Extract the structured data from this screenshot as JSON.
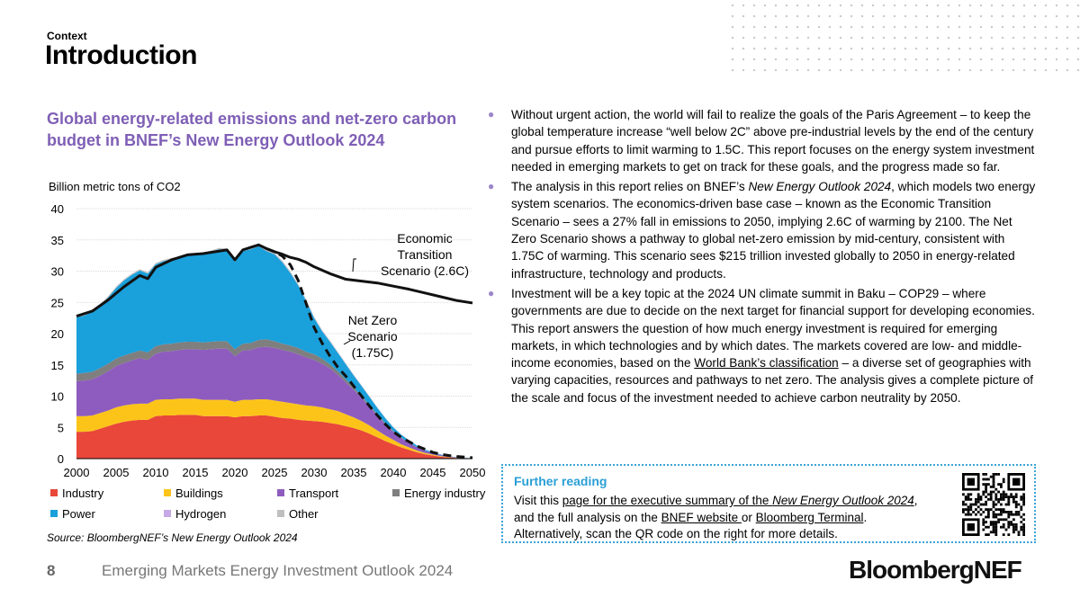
{
  "header": {
    "context": "Context",
    "title": "Introduction"
  },
  "chart_title": "Global energy-related emissions and net-zero carbon budget in BNEF’s New Energy Outlook 2024",
  "chart_data": {
    "type": "area",
    "ylabel": "Billion metric tons of CO2",
    "ylim": [
      0,
      40
    ],
    "yticks": [
      0,
      5,
      10,
      15,
      20,
      25,
      30,
      35,
      40
    ],
    "xlim": [
      2000,
      2050
    ],
    "xticks": [
      2000,
      2005,
      2010,
      2015,
      2020,
      2025,
      2030,
      2035,
      2040,
      2045,
      2050
    ],
    "x": [
      2000,
      2001,
      2002,
      2003,
      2004,
      2005,
      2006,
      2007,
      2008,
      2009,
      2010,
      2011,
      2012,
      2013,
      2014,
      2015,
      2016,
      2017,
      2018,
      2019,
      2020,
      2021,
      2022,
      2023,
      2024,
      2025,
      2026,
      2027,
      2028,
      2029,
      2030,
      2031,
      2032,
      2033,
      2034,
      2035,
      2036,
      2037,
      2038,
      2039,
      2040,
      2041,
      2042,
      2043,
      2044,
      2045,
      2046,
      2047,
      2048,
      2049,
      2050
    ],
    "series": [
      {
        "name": "Industry",
        "color": "#e8473a",
        "values": [
          4.3,
          4.3,
          4.4,
          4.8,
          5.2,
          5.6,
          5.9,
          6.1,
          6.2,
          6.2,
          6.8,
          6.9,
          6.9,
          7.0,
          7.0,
          7.0,
          6.8,
          6.8,
          6.8,
          6.8,
          6.6,
          6.8,
          6.8,
          6.9,
          6.9,
          6.7,
          6.5,
          6.4,
          6.2,
          6.1,
          6.0,
          5.9,
          5.7,
          5.5,
          5.2,
          4.9,
          4.5,
          4.0,
          3.4,
          2.8,
          2.3,
          1.8,
          1.4,
          1.0,
          0.7,
          0.5,
          0.3,
          0.2,
          0.1,
          0.05,
          0.02
        ]
      },
      {
        "name": "Buildings",
        "color": "#fcc419",
        "values": [
          2.5,
          2.5,
          2.5,
          2.5,
          2.5,
          2.6,
          2.6,
          2.6,
          2.6,
          2.6,
          2.6,
          2.6,
          2.6,
          2.6,
          2.6,
          2.6,
          2.6,
          2.6,
          2.6,
          2.6,
          2.5,
          2.6,
          2.6,
          2.6,
          2.6,
          2.6,
          2.6,
          2.5,
          2.5,
          2.4,
          2.4,
          2.3,
          2.2,
          2.1,
          1.9,
          1.7,
          1.5,
          1.3,
          1.1,
          0.9,
          0.7,
          0.5,
          0.4,
          0.3,
          0.2,
          0.15,
          0.1,
          0.05,
          0.03,
          0.02,
          0.01
        ]
      },
      {
        "name": "Transport",
        "color": "#8e5cbf",
        "values": [
          5.6,
          5.7,
          5.8,
          6.0,
          6.3,
          6.6,
          6.8,
          7.0,
          7.3,
          7.0,
          7.4,
          7.6,
          7.7,
          7.8,
          7.9,
          7.9,
          8.0,
          8.1,
          8.2,
          8.2,
          7.3,
          7.9,
          8.0,
          8.3,
          8.4,
          8.4,
          8.3,
          8.2,
          8.0,
          7.7,
          7.4,
          7.0,
          6.5,
          5.8,
          5.1,
          4.4,
          3.7,
          3.0,
          2.4,
          1.8,
          1.3,
          1.0,
          0.7,
          0.5,
          0.35,
          0.25,
          0.15,
          0.1,
          0.05,
          0.03,
          0.01
        ]
      },
      {
        "name": "Energy industry",
        "color": "#7f7f7f",
        "values": [
          1.2,
          1.2,
          1.2,
          1.2,
          1.2,
          1.2,
          1.2,
          1.2,
          1.2,
          1.2,
          1.2,
          1.2,
          1.2,
          1.2,
          1.2,
          1.2,
          1.2,
          1.2,
          1.2,
          1.2,
          1.1,
          1.1,
          1.1,
          1.2,
          1.2,
          1.1,
          1.0,
          1.0,
          1.0,
          0.9,
          0.9,
          0.8,
          0.7,
          0.6,
          0.5,
          0.4,
          0.3,
          0.25,
          0.2,
          0.15,
          0.1,
          0.08,
          0.06,
          0.04,
          0.03,
          0.02,
          0.01,
          0.01,
          0.0,
          0.0,
          0.0
        ]
      },
      {
        "name": "Power",
        "color": "#1aa0db",
        "values": [
          9.0,
          9.2,
          9.6,
          10.0,
          10.6,
          11.3,
          12.0,
          12.5,
          12.8,
          12.6,
          13.1,
          13.3,
          13.5,
          13.5,
          13.8,
          13.9,
          14.2,
          14.4,
          14.7,
          14.6,
          14.0,
          14.8,
          15.0,
          15.0,
          14.1,
          13.9,
          13.0,
          11.6,
          10.0,
          8.1,
          5.8,
          4.4,
          3.6,
          2.9,
          2.4,
          1.9,
          1.6,
          1.3,
          1.0,
          0.8,
          0.6,
          0.45,
          0.35,
          0.25,
          0.18,
          0.12,
          0.08,
          0.05,
          0.03,
          0.02,
          0.01
        ]
      },
      {
        "name": "Hydrogen",
        "color": "#c6a9e6",
        "values": [
          0,
          0,
          0,
          0,
          0,
          0,
          0,
          0,
          0,
          0,
          0,
          0,
          0,
          0,
          0,
          0,
          0,
          0,
          0,
          0,
          0,
          0,
          0,
          0,
          0.02,
          0.03,
          0.04,
          0.05,
          0.05,
          0.06,
          0.06,
          0.06,
          0.06,
          0.06,
          0.06,
          0.06,
          0.05,
          0.05,
          0.05,
          0.04,
          0.04,
          0.04,
          0.03,
          0.03,
          0.02,
          0.02,
          0.02,
          0.01,
          0.01,
          0.01,
          0.01
        ]
      },
      {
        "name": "Other",
        "color": "#bfbfbf",
        "values": [
          0.2,
          0.2,
          0.2,
          0.2,
          0.2,
          0.2,
          0.2,
          0.2,
          0.2,
          0.2,
          0.2,
          0.2,
          0.2,
          0.2,
          0.2,
          0.2,
          0.2,
          0.2,
          0.2,
          0.2,
          0.2,
          0.2,
          0.2,
          0.2,
          0.2,
          0.2,
          0.2,
          0.2,
          0.2,
          0.2,
          0.15,
          0.15,
          0.15,
          0.12,
          0.1,
          0.1,
          0.08,
          0.06,
          0.05,
          0.04,
          0.03,
          0.02,
          0.02,
          0.01,
          0.01,
          0.01,
          0.0,
          0.0,
          0.0,
          0.0,
          0.0
        ]
      }
    ],
    "lines": [
      {
        "name": "Economic Transition Scenario (2.6C)",
        "style": "solid",
        "color": "#111111",
        "x": [
          2000,
          2002,
          2004,
          2006,
          2008,
          2009,
          2010,
          2012,
          2014,
          2016,
          2018,
          2019,
          2020,
          2021,
          2022,
          2023,
          2024,
          2025,
          2026,
          2027,
          2028,
          2029,
          2030,
          2032,
          2034,
          2036,
          2038,
          2040,
          2042,
          2044,
          2046,
          2048,
          2050
        ],
        "values": [
          22.8,
          23.6,
          25.4,
          27.5,
          29.3,
          28.8,
          30.6,
          31.8,
          32.6,
          32.8,
          33.2,
          33.4,
          31.8,
          33.4,
          33.8,
          34.2,
          33.6,
          33.1,
          32.7,
          32.2,
          31.9,
          31.4,
          30.7,
          29.6,
          28.7,
          28.4,
          28.1,
          27.6,
          27.1,
          26.5,
          25.9,
          25.3,
          24.9
        ]
      },
      {
        "name": "Net Zero Scenario (1.75C)",
        "style": "dashed",
        "color": "#111111",
        "x": [
          2024,
          2025,
          2026,
          2027,
          2028,
          2029,
          2030,
          2031,
          2032,
          2033,
          2034,
          2035,
          2036,
          2037,
          2038,
          2039,
          2040,
          2041,
          2042,
          2043,
          2044,
          2045,
          2046,
          2047,
          2048,
          2049,
          2050
        ],
        "values": [
          33.6,
          33.1,
          32.4,
          31.0,
          28.5,
          24.8,
          21.0,
          18.5,
          16.4,
          14.6,
          13.2,
          11.6,
          10.0,
          8.4,
          6.9,
          5.5,
          4.3,
          3.4,
          2.7,
          2.0,
          1.5,
          1.0,
          0.7,
          0.5,
          0.35,
          0.25,
          0.15
        ]
      }
    ],
    "annotations": [
      {
        "text": "Economic\nTransition\nScenario (2.6C)",
        "target": "Economic Transition Scenario (2.6C)"
      },
      {
        "text": "Net Zero\nScenario\n(1.75C)",
        "target": "Net Zero Scenario (1.75C)"
      }
    ],
    "legend": "bottom",
    "grid": true
  },
  "legend_items": [
    {
      "label": "Industry",
      "color": "#e8473a"
    },
    {
      "label": "Buildings",
      "color": "#fcc419"
    },
    {
      "label": "Transport",
      "color": "#8e5cbf"
    },
    {
      "label": "Energy industry",
      "color": "#7f7f7f"
    },
    {
      "label": "Power",
      "color": "#1aa0db"
    },
    {
      "label": "Hydrogen",
      "color": "#c6a9e6"
    },
    {
      "label": "Other",
      "color": "#bfbfbf"
    }
  ],
  "source": "Source: BloombergNEF’s New Energy Outlook 2024",
  "bullets": {
    "b1": "Without urgent action, the world will fail to realize the goals of the Paris Agreement – to keep the global temperature increase “well below 2C” above pre-industrial levels by the end of the century and pursue efforts to limit warming to 1.5C. This report focuses on the energy system investment needed in emerging markets to get on track for these goals, and the progress made so far.",
    "b2_pre": "The analysis in this report relies on BNEF’s ",
    "b2_em": "New Energy Outlook 2024",
    "b2_post": ", which models two energy system scenarios. The economics-driven base case – known as the Economic Transition Scenario – sees a 27% fall in emissions to 2050, implying 2.6C of warming by 2100. The Net Zero Scenario shows a pathway to global net-zero emission by mid-century, consistent with 1.75C of warming. This scenario sees $215 trillion invested globally to 2050 in energy-related infrastructure, technology and products.",
    "b3_pre": "Investment will be a key topic at the 2024 UN climate summit in Baku – COP29 – where governments are due to decide on the next target for financial support for developing economies. This report answers the question of how much energy investment is required for emerging markets, in which technologies and by which dates. The markets covered are low- and middle-income economies, based on the ",
    "b3_link": "World Bank’s classification",
    "b3_post": " – a diverse set of geographies with varying capacities, resources and pathways to net zero. The analysis gives a complete picture of the scale and focus of the investment needed to achieve carbon neutrality by 2050.",
    "bullet_char": "●"
  },
  "further_reading": {
    "title": "Further reading",
    "t1": "Visit this ",
    "link1_a": "page for the executive summary of the ",
    "link1_em": "New Energy Outlook 2024",
    "t2": ", and the full analysis on the ",
    "link2": "BNEF website ",
    "t3": "or ",
    "link3": "Bloomberg Terminal",
    "t4": ". Alternatively, scan the QR code on the right for more details."
  },
  "footer": {
    "page": "8",
    "text": "Emerging Markets Energy Investment Outlook 2024",
    "brand": "BloombergNEF"
  }
}
